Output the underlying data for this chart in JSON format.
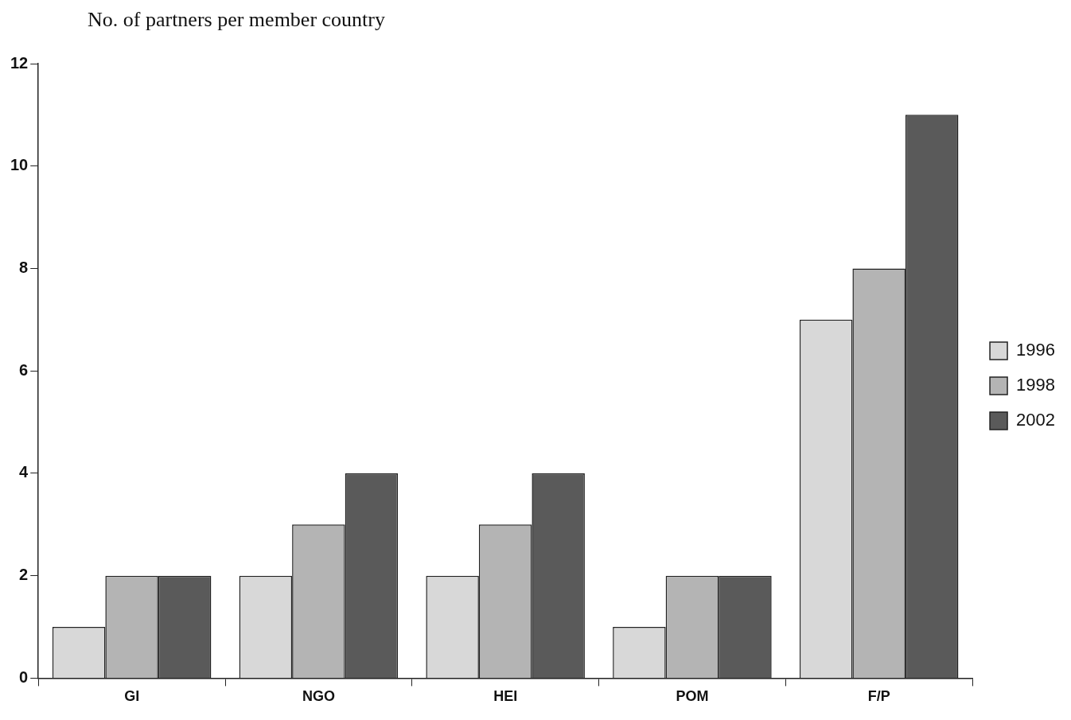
{
  "chart_data": {
    "type": "bar",
    "ylabel": "No. of partners per member country",
    "categories": [
      "GI",
      "NGO",
      "HEI",
      "POM",
      "F/P"
    ],
    "series": [
      {
        "name": "1996",
        "color": "#d8d8d8",
        "values": [
          1,
          2,
          2,
          1,
          7
        ]
      },
      {
        "name": "1998",
        "color": "#b4b4b4",
        "values": [
          2,
          3,
          3,
          2,
          8
        ]
      },
      {
        "name": "2002",
        "color": "#5a5a5a",
        "values": [
          2,
          4,
          4,
          2,
          11
        ]
      }
    ],
    "ylim": [
      0,
      12
    ],
    "yticks": [
      0,
      2,
      4,
      6,
      8,
      10,
      12
    ],
    "grid": false,
    "legend": "right"
  }
}
